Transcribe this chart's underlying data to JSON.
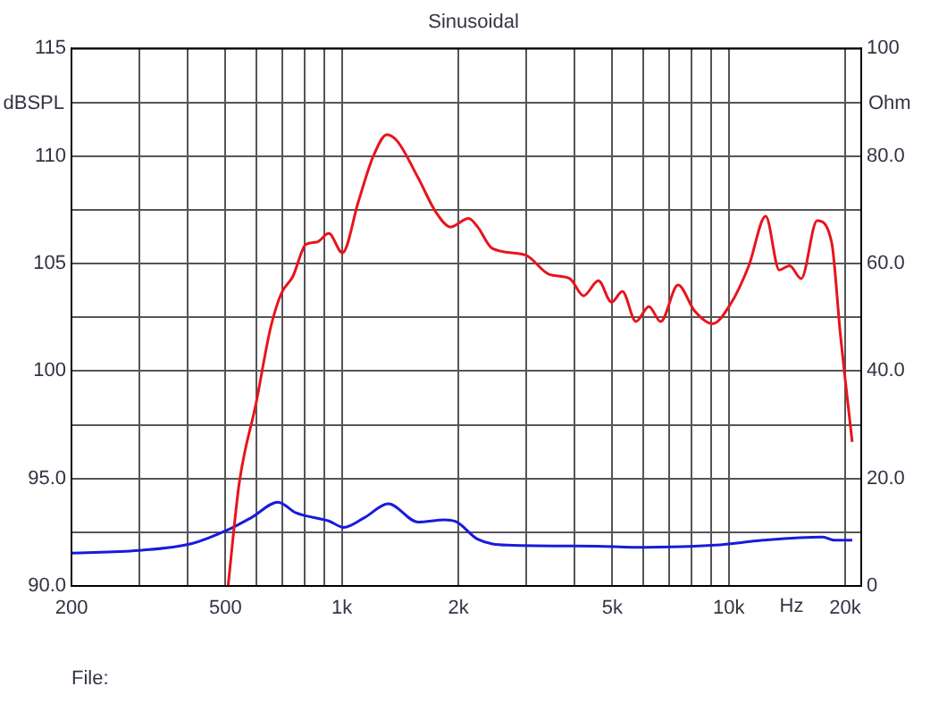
{
  "chart_data": {
    "type": "line",
    "title": "Sinusoidal",
    "xlabel": "Hz",
    "ylabel": "dBSPL",
    "y2label": "Ohm",
    "annotations": [
      "File:"
    ],
    "log": "x",
    "grid": true,
    "legend": false,
    "marker": "none",
    "line_style": "solid",
    "xlim": [
      200,
      22000
    ],
    "xticks": [
      200,
      {
        "value": 300,
        "label": null
      },
      {
        "value": 400,
        "label": null
      },
      500,
      {
        "value": 600,
        "label": null
      },
      {
        "value": 700,
        "label": null
      },
      {
        "value": 800,
        "label": null
      },
      {
        "value": 900,
        "label": null
      },
      {
        "value": 1000,
        "label": "1k"
      },
      {
        "value": 2000,
        "label": "2k"
      },
      {
        "value": 3000,
        "label": null
      },
      {
        "value": 4000,
        "label": null
      },
      {
        "value": 5000,
        "label": "5k"
      },
      {
        "value": 6000,
        "label": null
      },
      {
        "value": 7000,
        "label": null
      },
      {
        "value": 8000,
        "label": null
      },
      {
        "value": 9000,
        "label": null
      },
      {
        "value": 10000,
        "label": "10k"
      },
      {
        "value": 20000,
        "label": "20k"
      }
    ],
    "ylim": [
      90,
      115
    ],
    "yticks": [
      {
        "value": 90,
        "label": "90.0"
      },
      {
        "value": 92.5,
        "label": null
      },
      {
        "value": 95,
        "label": "95.0"
      },
      {
        "value": 97.5,
        "label": null
      },
      100,
      {
        "value": 102.5,
        "label": null
      },
      105,
      {
        "value": 107.5,
        "label": null
      },
      110,
      {
        "value": 112.5,
        "label": null
      },
      115
    ],
    "y2lim": [
      0,
      100
    ],
    "y2ticks": [
      0,
      {
        "value": 20,
        "label": "20.0"
      },
      {
        "value": 40,
        "label": "40.0"
      },
      {
        "value": 60,
        "label": "60.0"
      },
      {
        "value": 80,
        "label": "80.0"
      },
      100
    ],
    "series": [
      {
        "color": "#e8141c",
        "x": [
          508,
          543,
          600,
          654,
          697,
          747,
          808,
          862,
          925,
          1003,
          1104,
          1206,
          1308,
          1390,
          1573,
          1749,
          1910,
          2126,
          2244,
          2448,
          2978,
          3430,
          3882,
          4213,
          4604,
          4978,
          5308,
          5757,
          6215,
          6668,
          7396,
          8157,
          9066,
          10096,
          11270,
          12460,
          13510,
          14360,
          15390,
          16920,
          18440,
          19430,
          20000,
          20850
        ],
        "values": [
          90,
          94.8,
          98.5,
          102,
          103.6,
          104.4,
          105.9,
          106,
          106.4,
          105.5,
          107.9,
          110,
          111,
          110.7,
          109,
          107.4,
          106.7,
          107.1,
          106.7,
          105.7,
          105.4,
          104.5,
          104.3,
          103.5,
          104.2,
          103.2,
          103.7,
          102.3,
          103,
          102.3,
          104,
          102.8,
          102.2,
          103.1,
          104.9,
          107.2,
          104.7,
          104.9,
          104.3,
          107,
          106,
          101.7,
          99.6,
          96.7
        ]
      },
      {
        "color": "#1a1adc",
        "axis": "y2",
        "x": [
          200,
          298,
          410,
          506,
          583,
          684,
          761,
          925,
          1011,
          1143,
          1318,
          1573,
          1845,
          1981,
          2244,
          2677,
          4550,
          5626,
          9240,
          12250,
          17500,
          18800,
          20850
        ],
        "values": [
          6.1,
          6.6,
          7.9,
          10.4,
          12.7,
          15.6,
          13.6,
          12.1,
          10.9,
          12.7,
          15.3,
          11.9,
          12.3,
          11.9,
          8.7,
          7.6,
          7.4,
          7.2,
          7.6,
          8.5,
          9.1,
          8.5,
          8.5
        ]
      }
    ]
  }
}
